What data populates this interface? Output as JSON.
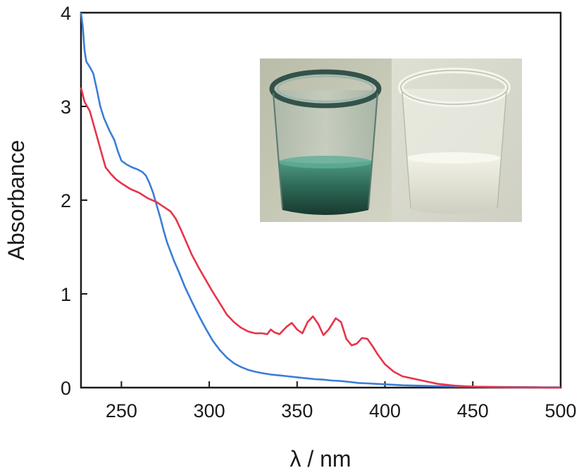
{
  "chart_data": {
    "type": "line",
    "xlabel": "λ / nm",
    "ylabel": "Absorbance",
    "xlim": [
      227,
      500
    ],
    "ylim": [
      0,
      4
    ],
    "xticks": [
      250,
      300,
      350,
      400,
      450,
      500
    ],
    "yticks": [
      0,
      1,
      2,
      3,
      4
    ],
    "grid": false,
    "series": [
      {
        "color": "#3b7dd8",
        "x": [
          227,
          228,
          229,
          230,
          232,
          234,
          236,
          238,
          240,
          243,
          246,
          248,
          250,
          253,
          256,
          259,
          262,
          264,
          266,
          268,
          270,
          272,
          274,
          276,
          278,
          280,
          283,
          286,
          290,
          294,
          298,
          302,
          306,
          310,
          314,
          318,
          322,
          326,
          330,
          335,
          340,
          345,
          350,
          355,
          360,
          365,
          370,
          375,
          380,
          385,
          390,
          395,
          400,
          410,
          420,
          430,
          440,
          450,
          460,
          470,
          480,
          490,
          500
        ],
        "y": [
          4.0,
          3.85,
          3.6,
          3.48,
          3.42,
          3.35,
          3.18,
          3.0,
          2.88,
          2.75,
          2.64,
          2.52,
          2.42,
          2.38,
          2.35,
          2.33,
          2.3,
          2.26,
          2.18,
          2.08,
          1.95,
          1.82,
          1.68,
          1.55,
          1.45,
          1.35,
          1.22,
          1.08,
          0.92,
          0.77,
          0.63,
          0.5,
          0.4,
          0.32,
          0.26,
          0.22,
          0.19,
          0.17,
          0.155,
          0.14,
          0.13,
          0.12,
          0.11,
          0.1,
          0.09,
          0.085,
          0.075,
          0.07,
          0.06,
          0.05,
          0.045,
          0.04,
          0.035,
          0.025,
          0.02,
          0.015,
          0.012,
          0.01,
          0.008,
          0.006,
          0.005,
          0.004,
          0.003
        ]
      },
      {
        "color": "#e8334a",
        "x": [
          227,
          229,
          232,
          235,
          238,
          241,
          244,
          247,
          250,
          255,
          260,
          265,
          270,
          274,
          278,
          281,
          284,
          287,
          290,
          294,
          298,
          302,
          306,
          310,
          314,
          318,
          322,
          326,
          330,
          333,
          335,
          337,
          340,
          344,
          347,
          350,
          353,
          356,
          359,
          362,
          365,
          368,
          372,
          375,
          378,
          381,
          384,
          387,
          390,
          393,
          396,
          400,
          405,
          410,
          415,
          420,
          425,
          430,
          440,
          450,
          460,
          470,
          480,
          490,
          500
        ],
        "y": [
          3.2,
          3.05,
          2.95,
          2.75,
          2.55,
          2.35,
          2.28,
          2.22,
          2.18,
          2.12,
          2.08,
          2.02,
          1.98,
          1.93,
          1.88,
          1.8,
          1.68,
          1.55,
          1.42,
          1.28,
          1.15,
          1.02,
          0.9,
          0.78,
          0.7,
          0.64,
          0.6,
          0.58,
          0.58,
          0.57,
          0.62,
          0.59,
          0.57,
          0.65,
          0.69,
          0.62,
          0.58,
          0.7,
          0.76,
          0.68,
          0.56,
          0.62,
          0.74,
          0.7,
          0.52,
          0.45,
          0.47,
          0.53,
          0.52,
          0.44,
          0.35,
          0.25,
          0.17,
          0.12,
          0.1,
          0.08,
          0.06,
          0.04,
          0.02,
          0.01,
          0.005,
          0.003,
          0.002,
          0.001,
          0.001
        ]
      }
    ]
  },
  "inset": {
    "description": "photo-inset",
    "left_vial_color": "#2f6b58",
    "right_vial_color": "#e9ead8"
  }
}
